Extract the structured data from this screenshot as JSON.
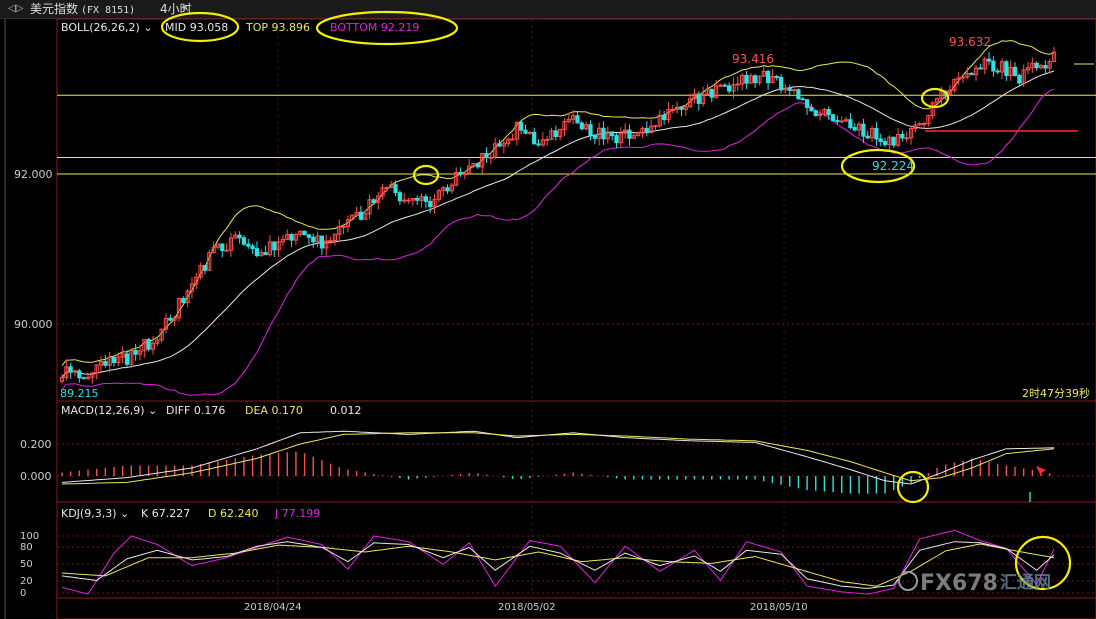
{
  "window": {
    "arrows": "◁▷",
    "symbol": "美元指数",
    "code": "(FX 8151)",
    "period": "4小时",
    "dropdown": "▾"
  },
  "colors": {
    "up": "#ff4d4d",
    "down": "#2fe0e0",
    "mid": "#e8e8e8",
    "top": "#e8e85a",
    "bottom": "#e020e0",
    "diff": "#e8e8e8",
    "dea": "#e8e85a",
    "k": "#e8e8e8",
    "d": "#e8e85a",
    "j": "#e020e0",
    "hline": "#e8e85a",
    "redline": "#ff2a2a",
    "annot": "#f0f000"
  },
  "boll": {
    "label": "BOLL(26,26,2)",
    "mid_label": "MID",
    "mid": "93.058",
    "top_label": "TOP",
    "top": "93.896",
    "bottom_label": "BOTTOM",
    "bottom": "92.219"
  },
  "macd": {
    "label": "MACD(12,26,9)",
    "diff_label": "DIFF",
    "diff": "0.176",
    "dea_label": "DEA",
    "dea": "0.170",
    "macd": "0.012"
  },
  "kdj": {
    "label": "KDJ(9,3,3)",
    "k_label": "K",
    "k": "67.227",
    "d_label": "D",
    "d": "62.240",
    "j_label": "J",
    "j": "77.199"
  },
  "annotations": {
    "high1": "93.416",
    "high2": "93.632",
    "low1": "92.224",
    "leftval": "89.215",
    "timer": "2时47分39秒"
  },
  "watermark": {
    "text": "FX678",
    "sub": "汇通网"
  },
  "chart_data": [
    {
      "type": "candlestick",
      "title": "美元指数 4小时",
      "y_ticks": [
        "92.000",
        "90.000"
      ],
      "ylim": [
        88.9,
        94.1
      ],
      "x_tick_labels": [
        "2018/04/24",
        "2018/05/02",
        "2018/05/10"
      ],
      "horizontal_lines": [
        93.05,
        92.22,
        92.0
      ],
      "price_anchors": [
        [
          0,
          89.35
        ],
        [
          5,
          89.35
        ],
        [
          10,
          89.45
        ],
        [
          15,
          89.55
        ],
        [
          20,
          89.75
        ],
        [
          25,
          90.05
        ],
        [
          30,
          90.55
        ],
        [
          35,
          90.95
        ],
        [
          40,
          91.1
        ],
        [
          45,
          90.95
        ],
        [
          50,
          91.05
        ],
        [
          55,
          91.25
        ],
        [
          60,
          91.1
        ],
        [
          65,
          91.35
        ],
        [
          70,
          91.5
        ],
        [
          75,
          91.85
        ],
        [
          80,
          91.6
        ],
        [
          85,
          91.65
        ],
        [
          90,
          91.9
        ],
        [
          95,
          92.1
        ],
        [
          100,
          92.35
        ],
        [
          105,
          92.6
        ],
        [
          110,
          92.45
        ],
        [
          115,
          92.55
        ],
        [
          118,
          92.8
        ],
        [
          122,
          92.55
        ],
        [
          128,
          92.5
        ],
        [
          135,
          92.6
        ],
        [
          142,
          92.85
        ],
        [
          148,
          93.05
        ],
        [
          152,
          93.1
        ],
        [
          158,
          93.25
        ],
        [
          163,
          93.3
        ],
        [
          167,
          93.1
        ],
        [
          172,
          92.95
        ],
        [
          177,
          92.75
        ],
        [
          183,
          92.62
        ],
        [
          188,
          92.52
        ],
        [
          192,
          92.42
        ],
        [
          197,
          92.6
        ],
        [
          201,
          92.9
        ],
        [
          205,
          93.2
        ],
        [
          209,
          93.38
        ],
        [
          213,
          93.48
        ],
        [
          217,
          93.42
        ],
        [
          221,
          93.3
        ],
        [
          225,
          93.45
        ],
        [
          229,
          93.55
        ]
      ],
      "candle_count": 230,
      "annotations": {
        "max1": 93.416,
        "max2": 93.632,
        "min": 92.224,
        "left": 89.215
      }
    },
    {
      "type": "macd",
      "y_ticks": [
        "0.200",
        "0.000"
      ],
      "ylim": [
        -0.08,
        0.33
      ],
      "diff_anchors": [
        [
          0,
          -0.04
        ],
        [
          15,
          -0.01
        ],
        [
          30,
          0.05
        ],
        [
          45,
          0.17
        ],
        [
          55,
          0.27
        ],
        [
          65,
          0.28
        ],
        [
          80,
          0.26
        ],
        [
          95,
          0.28
        ],
        [
          105,
          0.24
        ],
        [
          118,
          0.27
        ],
        [
          130,
          0.24
        ],
        [
          145,
          0.22
        ],
        [
          160,
          0.21
        ],
        [
          172,
          0.12
        ],
        [
          182,
          0.04
        ],
        [
          190,
          -0.03
        ],
        [
          196,
          -0.05
        ],
        [
          203,
          0.02
        ],
        [
          210,
          0.1
        ],
        [
          218,
          0.17
        ],
        [
          229,
          0.176
        ]
      ],
      "dea_anchors": [
        [
          0,
          -0.05
        ],
        [
          15,
          -0.04
        ],
        [
          30,
          0.02
        ],
        [
          45,
          0.11
        ],
        [
          55,
          0.2
        ],
        [
          65,
          0.26
        ],
        [
          80,
          0.27
        ],
        [
          95,
          0.27
        ],
        [
          105,
          0.25
        ],
        [
          118,
          0.26
        ],
        [
          130,
          0.25
        ],
        [
          145,
          0.23
        ],
        [
          160,
          0.22
        ],
        [
          172,
          0.16
        ],
        [
          182,
          0.09
        ],
        [
          190,
          0.02
        ],
        [
          196,
          -0.03
        ],
        [
          203,
          -0.01
        ],
        [
          210,
          0.05
        ],
        [
          218,
          0.14
        ],
        [
          229,
          0.17
        ]
      ]
    },
    {
      "type": "kdj",
      "y_ticks": [
        "100",
        "80",
        "50",
        "20",
        "0"
      ],
      "ylim": [
        -5,
        110
      ],
      "k_anchors": [
        [
          0,
          30
        ],
        [
          8,
          22
        ],
        [
          15,
          60
        ],
        [
          22,
          75
        ],
        [
          30,
          58
        ],
        [
          38,
          64
        ],
        [
          45,
          82
        ],
        [
          52,
          90
        ],
        [
          60,
          80
        ],
        [
          66,
          55
        ],
        [
          72,
          88
        ],
        [
          80,
          85
        ],
        [
          88,
          62
        ],
        [
          94,
          80
        ],
        [
          100,
          40
        ],
        [
          108,
          82
        ],
        [
          115,
          70
        ],
        [
          123,
          40
        ],
        [
          130,
          70
        ],
        [
          138,
          48
        ],
        [
          146,
          65
        ],
        [
          152,
          38
        ],
        [
          158,
          75
        ],
        [
          166,
          68
        ],
        [
          172,
          25
        ],
        [
          180,
          12
        ],
        [
          186,
          8
        ],
        [
          192,
          14
        ],
        [
          198,
          75
        ],
        [
          206,
          90
        ],
        [
          212,
          88
        ],
        [
          218,
          78
        ],
        [
          225,
          40
        ],
        [
          229,
          67
        ]
      ],
      "d_anchors": [
        [
          0,
          35
        ],
        [
          10,
          30
        ],
        [
          20,
          62
        ],
        [
          30,
          62
        ],
        [
          40,
          70
        ],
        [
          50,
          84
        ],
        [
          60,
          80
        ],
        [
          70,
          72
        ],
        [
          80,
          82
        ],
        [
          90,
          72
        ],
        [
          100,
          58
        ],
        [
          110,
          72
        ],
        [
          120,
          55
        ],
        [
          130,
          62
        ],
        [
          140,
          55
        ],
        [
          150,
          52
        ],
        [
          160,
          64
        ],
        [
          170,
          42
        ],
        [
          180,
          20
        ],
        [
          188,
          12
        ],
        [
          196,
          38
        ],
        [
          204,
          74
        ],
        [
          212,
          86
        ],
        [
          220,
          74
        ],
        [
          229,
          62
        ]
      ],
      "j_anchors": [
        [
          0,
          10
        ],
        [
          6,
          -2
        ],
        [
          12,
          70
        ],
        [
          16,
          100
        ],
        [
          22,
          85
        ],
        [
          30,
          48
        ],
        [
          38,
          62
        ],
        [
          45,
          80
        ],
        [
          52,
          98
        ],
        [
          60,
          85
        ],
        [
          66,
          42
        ],
        [
          72,
          100
        ],
        [
          80,
          90
        ],
        [
          88,
          50
        ],
        [
          94,
          88
        ],
        [
          100,
          12
        ],
        [
          108,
          92
        ],
        [
          115,
          82
        ],
        [
          123,
          18
        ],
        [
          130,
          82
        ],
        [
          138,
          38
        ],
        [
          146,
          75
        ],
        [
          152,
          22
        ],
        [
          158,
          90
        ],
        [
          166,
          72
        ],
        [
          172,
          12
        ],
        [
          180,
          2
        ],
        [
          186,
          -2
        ],
        [
          192,
          8
        ],
        [
          198,
          95
        ],
        [
          206,
          110
        ],
        [
          212,
          92
        ],
        [
          218,
          78
        ],
        [
          225,
          15
        ],
        [
          229,
          77
        ]
      ]
    }
  ]
}
